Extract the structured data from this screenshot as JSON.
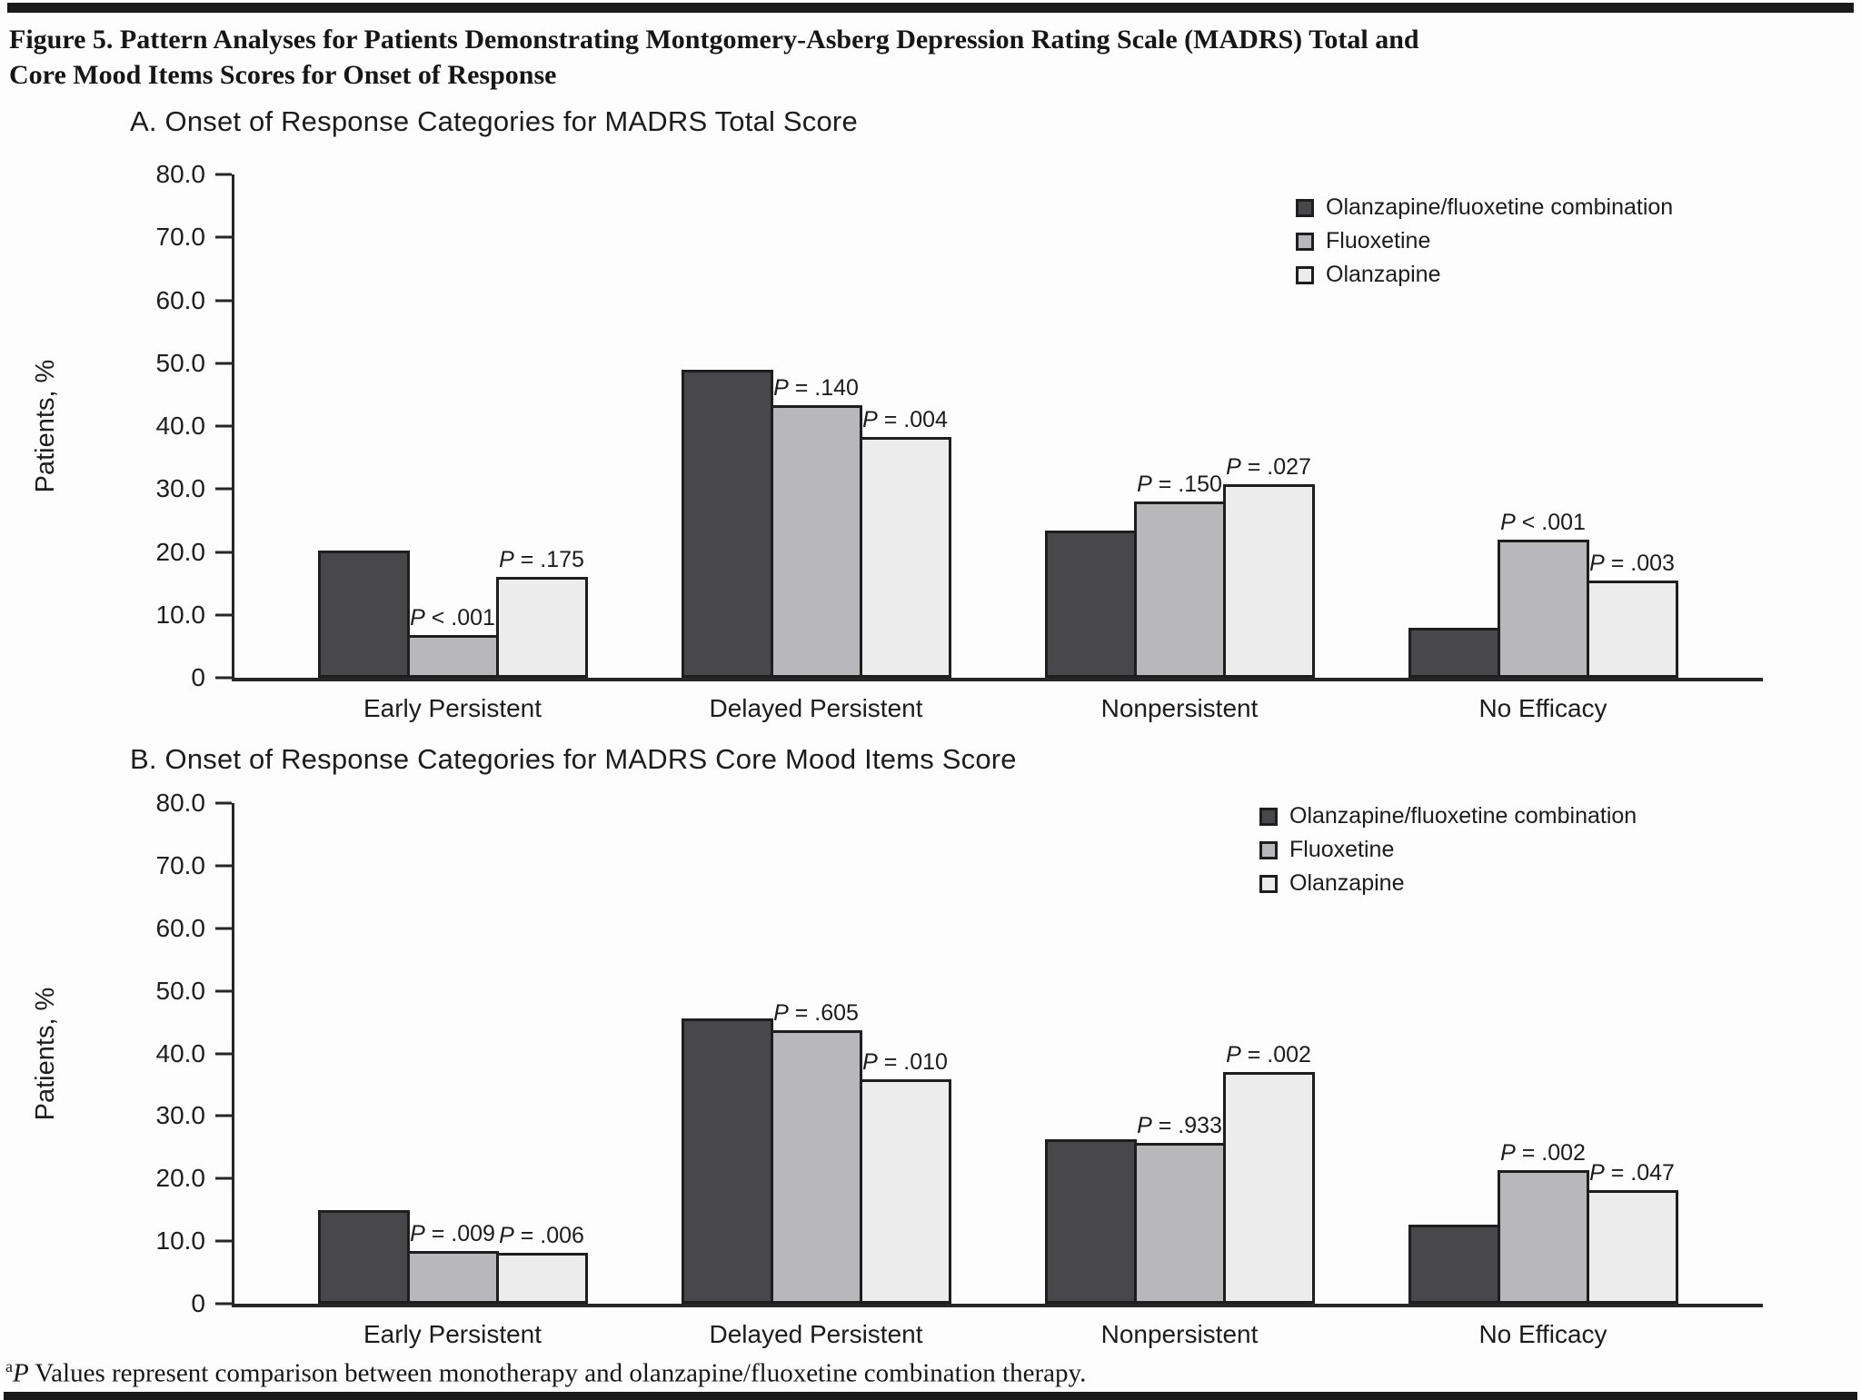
{
  "figure": {
    "title_lines": [
      "Figure 5. Pattern Analyses for Patients Demonstrating Montgomery-Asberg Depression Rating Scale (MADRS) Total and",
      "Core Mood Items Scores for Onset of Response"
    ],
    "footnote": {
      "sup": "a",
      "p_italic": "P",
      "text": " Values represent comparison between monotherapy and olanzapine/fluoxetine combination therapy."
    }
  },
  "colors": {
    "ofc": "#48484a",
    "fluoxetine": "#b8b8ba",
    "olanzapine": "#ececec",
    "bar_border": "#1e1e1e",
    "axis": "#262626",
    "rule": "#1a1a1a"
  },
  "chart_data": [
    {
      "type": "bar",
      "panel_title": "A. Onset of Response Categories for MADRS Total Score",
      "ylabel": "Patients, %",
      "ylim": [
        0,
        80
      ],
      "yticks": [
        "80.0",
        "70.0",
        "60.0",
        "50.0",
        "40.0",
        "30.0",
        "20.0",
        "10.0",
        "0"
      ],
      "grid": false,
      "legend_position": "top-right",
      "categories": [
        "Early Persistent",
        "Delayed Persistent",
        "Nonpersistent",
        "No Efficacy"
      ],
      "series": [
        {
          "name": "Olanzapine/fluoxetine combination",
          "color_key": "ofc",
          "values": [
            20.2,
            49.0,
            23.4,
            7.9
          ]
        },
        {
          "name": "Fluoxetine",
          "color_key": "fluoxetine",
          "values": [
            6.8,
            43.3,
            28.0,
            22.0
          ],
          "p_labels": [
            "P < .001",
            "P = .140",
            "P = .150",
            "P < .001"
          ]
        },
        {
          "name": "Olanzapine",
          "color_key": "olanzapine",
          "values": [
            16.1,
            38.2,
            30.8,
            15.4
          ],
          "p_labels": [
            "P = .175",
            "P = .004",
            "P = .027",
            "P = .003"
          ]
        }
      ]
    },
    {
      "type": "bar",
      "panel_title": "B. Onset of Response Categories for MADRS Core Mood Items Score",
      "ylabel": "Patients, %",
      "ylim": [
        0,
        80
      ],
      "yticks": [
        "80.0",
        "70.0",
        "60.0",
        "50.0",
        "40.0",
        "30.0",
        "20.0",
        "10.0",
        "0"
      ],
      "grid": false,
      "legend_position": "top-right",
      "categories": [
        "Early Persistent",
        "Delayed Persistent",
        "Nonpersistent",
        "No Efficacy"
      ],
      "series": [
        {
          "name": "Olanzapine/fluoxetine combination",
          "color_key": "ofc",
          "values": [
            15.0,
            45.6,
            26.3,
            12.6
          ]
        },
        {
          "name": "Fluoxetine",
          "color_key": "fluoxetine",
          "values": [
            8.4,
            43.7,
            25.7,
            21.3
          ],
          "p_labels": [
            "P = .009",
            "P = .605",
            "P = .933",
            "P = .002"
          ]
        },
        {
          "name": "Olanzapine",
          "color_key": "olanzapine",
          "values": [
            8.1,
            35.9,
            37.0,
            18.1
          ],
          "p_labels": [
            "P = .006",
            "P = .010",
            "P = .002",
            "P = .047"
          ]
        }
      ]
    }
  ]
}
